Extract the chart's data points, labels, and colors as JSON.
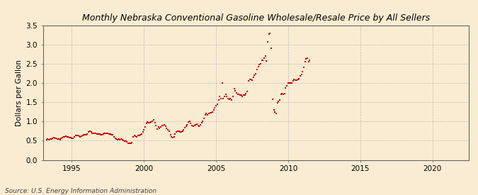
{
  "title": "Monthly Nebraska Conventional Gasoline Wholesale/Resale Price by All Sellers",
  "ylabel": "Dollars per Gallon",
  "source": "Source: U.S. Energy Information Administration",
  "background_color": "#faecd2",
  "point_color": "#cc0000",
  "xlim": [
    1993.0,
    2022.5
  ],
  "ylim": [
    0.0,
    3.5
  ],
  "xticks": [
    1995,
    2000,
    2005,
    2010,
    2015,
    2020
  ],
  "yticks": [
    0.0,
    0.5,
    1.0,
    1.5,
    2.0,
    2.5,
    3.0,
    3.5
  ],
  "data": [
    [
      1993.25,
      0.52
    ],
    [
      1993.33,
      0.55
    ],
    [
      1993.42,
      0.53
    ],
    [
      1993.5,
      0.54
    ],
    [
      1993.58,
      0.55
    ],
    [
      1993.67,
      0.56
    ],
    [
      1993.75,
      0.58
    ],
    [
      1993.83,
      0.57
    ],
    [
      1993.92,
      0.56
    ],
    [
      1994.0,
      0.55
    ],
    [
      1994.08,
      0.54
    ],
    [
      1994.17,
      0.53
    ],
    [
      1994.25,
      0.56
    ],
    [
      1994.33,
      0.59
    ],
    [
      1994.42,
      0.6
    ],
    [
      1994.5,
      0.6
    ],
    [
      1994.58,
      0.61
    ],
    [
      1994.67,
      0.6
    ],
    [
      1994.75,
      0.6
    ],
    [
      1994.83,
      0.59
    ],
    [
      1994.92,
      0.58
    ],
    [
      1995.0,
      0.57
    ],
    [
      1995.08,
      0.56
    ],
    [
      1995.17,
      0.6
    ],
    [
      1995.25,
      0.63
    ],
    [
      1995.33,
      0.63
    ],
    [
      1995.42,
      0.64
    ],
    [
      1995.5,
      0.62
    ],
    [
      1995.58,
      0.6
    ],
    [
      1995.67,
      0.62
    ],
    [
      1995.75,
      0.64
    ],
    [
      1995.83,
      0.66
    ],
    [
      1995.92,
      0.66
    ],
    [
      1996.0,
      0.65
    ],
    [
      1996.08,
      0.67
    ],
    [
      1996.17,
      0.72
    ],
    [
      1996.25,
      0.75
    ],
    [
      1996.33,
      0.72
    ],
    [
      1996.42,
      0.7
    ],
    [
      1996.5,
      0.69
    ],
    [
      1996.58,
      0.7
    ],
    [
      1996.67,
      0.7
    ],
    [
      1996.75,
      0.68
    ],
    [
      1996.83,
      0.68
    ],
    [
      1996.92,
      0.67
    ],
    [
      1997.0,
      0.66
    ],
    [
      1997.08,
      0.65
    ],
    [
      1997.17,
      0.67
    ],
    [
      1997.25,
      0.7
    ],
    [
      1997.33,
      0.7
    ],
    [
      1997.42,
      0.7
    ],
    [
      1997.5,
      0.69
    ],
    [
      1997.58,
      0.68
    ],
    [
      1997.67,
      0.67
    ],
    [
      1997.75,
      0.66
    ],
    [
      1997.83,
      0.65
    ],
    [
      1997.92,
      0.6
    ],
    [
      1998.0,
      0.56
    ],
    [
      1998.08,
      0.54
    ],
    [
      1998.17,
      0.53
    ],
    [
      1998.25,
      0.54
    ],
    [
      1998.33,
      0.52
    ],
    [
      1998.42,
      0.54
    ],
    [
      1998.5,
      0.52
    ],
    [
      1998.58,
      0.5
    ],
    [
      1998.67,
      0.49
    ],
    [
      1998.75,
      0.48
    ],
    [
      1998.83,
      0.47
    ],
    [
      1998.92,
      0.44
    ],
    [
      1999.0,
      0.43
    ],
    [
      1999.08,
      0.43
    ],
    [
      1999.17,
      0.46
    ],
    [
      1999.25,
      0.6
    ],
    [
      1999.33,
      0.64
    ],
    [
      1999.42,
      0.62
    ],
    [
      1999.5,
      0.6
    ],
    [
      1999.58,
      0.63
    ],
    [
      1999.67,
      0.64
    ],
    [
      1999.75,
      0.66
    ],
    [
      1999.83,
      0.68
    ],
    [
      1999.92,
      0.72
    ],
    [
      2000.0,
      0.78
    ],
    [
      2000.08,
      0.85
    ],
    [
      2000.17,
      0.95
    ],
    [
      2000.25,
      0.98
    ],
    [
      2000.33,
      0.96
    ],
    [
      2000.42,
      0.97
    ],
    [
      2000.5,
      0.98
    ],
    [
      2000.58,
      1.0
    ],
    [
      2000.67,
      1.05
    ],
    [
      2000.75,
      0.97
    ],
    [
      2000.83,
      0.9
    ],
    [
      2000.92,
      0.8
    ],
    [
      2001.0,
      0.85
    ],
    [
      2001.08,
      0.82
    ],
    [
      2001.17,
      0.86
    ],
    [
      2001.25,
      0.9
    ],
    [
      2001.33,
      0.9
    ],
    [
      2001.42,
      0.92
    ],
    [
      2001.5,
      0.87
    ],
    [
      2001.58,
      0.82
    ],
    [
      2001.67,
      0.78
    ],
    [
      2001.75,
      0.75
    ],
    [
      2001.83,
      0.65
    ],
    [
      2001.92,
      0.6
    ],
    [
      2002.0,
      0.58
    ],
    [
      2002.08,
      0.6
    ],
    [
      2002.17,
      0.68
    ],
    [
      2002.25,
      0.72
    ],
    [
      2002.33,
      0.74
    ],
    [
      2002.42,
      0.74
    ],
    [
      2002.5,
      0.73
    ],
    [
      2002.58,
      0.73
    ],
    [
      2002.67,
      0.74
    ],
    [
      2002.75,
      0.78
    ],
    [
      2002.83,
      0.84
    ],
    [
      2002.92,
      0.88
    ],
    [
      2003.0,
      0.92
    ],
    [
      2003.08,
      0.98
    ],
    [
      2003.17,
      1.0
    ],
    [
      2003.25,
      0.95
    ],
    [
      2003.33,
      0.9
    ],
    [
      2003.42,
      0.88
    ],
    [
      2003.5,
      0.9
    ],
    [
      2003.58,
      0.92
    ],
    [
      2003.67,
      0.93
    ],
    [
      2003.75,
      0.9
    ],
    [
      2003.83,
      0.88
    ],
    [
      2003.92,
      0.92
    ],
    [
      2004.0,
      0.96
    ],
    [
      2004.08,
      1.0
    ],
    [
      2004.17,
      1.08
    ],
    [
      2004.25,
      1.18
    ],
    [
      2004.33,
      1.2
    ],
    [
      2004.42,
      1.18
    ],
    [
      2004.5,
      1.2
    ],
    [
      2004.58,
      1.22
    ],
    [
      2004.67,
      1.22
    ],
    [
      2004.75,
      1.25
    ],
    [
      2004.83,
      1.3
    ],
    [
      2004.92,
      1.35
    ],
    [
      2005.0,
      1.42
    ],
    [
      2005.08,
      1.45
    ],
    [
      2005.17,
      1.55
    ],
    [
      2005.25,
      1.65
    ],
    [
      2005.33,
      1.6
    ],
    [
      2005.42,
      2.0
    ],
    [
      2005.5,
      1.6
    ],
    [
      2005.58,
      1.65
    ],
    [
      2005.67,
      1.7
    ],
    [
      2005.75,
      1.65
    ],
    [
      2005.83,
      1.6
    ],
    [
      2005.92,
      1.58
    ],
    [
      2006.0,
      1.6
    ],
    [
      2006.08,
      1.55
    ],
    [
      2006.17,
      1.65
    ],
    [
      2006.25,
      1.85
    ],
    [
      2006.33,
      1.8
    ],
    [
      2006.42,
      1.75
    ],
    [
      2006.5,
      1.7
    ],
    [
      2006.58,
      1.7
    ],
    [
      2006.67,
      1.68
    ],
    [
      2006.75,
      1.68
    ],
    [
      2006.83,
      1.65
    ],
    [
      2006.92,
      1.68
    ],
    [
      2007.0,
      1.68
    ],
    [
      2007.08,
      1.72
    ],
    [
      2007.17,
      1.78
    ],
    [
      2007.25,
      2.05
    ],
    [
      2007.33,
      2.1
    ],
    [
      2007.42,
      2.1
    ],
    [
      2007.5,
      2.08
    ],
    [
      2007.58,
      2.15
    ],
    [
      2007.67,
      2.2
    ],
    [
      2007.75,
      2.25
    ],
    [
      2007.83,
      2.35
    ],
    [
      2007.92,
      2.42
    ],
    [
      2008.0,
      2.48
    ],
    [
      2008.08,
      2.5
    ],
    [
      2008.17,
      2.6
    ],
    [
      2008.25,
      2.6
    ],
    [
      2008.33,
      2.65
    ],
    [
      2008.42,
      2.7
    ],
    [
      2008.5,
      2.58
    ],
    [
      2008.58,
      3.08
    ],
    [
      2008.67,
      3.28
    ],
    [
      2008.75,
      3.3
    ],
    [
      2008.83,
      2.9
    ],
    [
      2008.92,
      1.58
    ],
    [
      2009.0,
      1.3
    ],
    [
      2009.08,
      1.25
    ],
    [
      2009.17,
      1.2
    ],
    [
      2009.25,
      1.48
    ],
    [
      2009.33,
      1.52
    ],
    [
      2009.42,
      1.55
    ],
    [
      2009.5,
      1.7
    ],
    [
      2009.58,
      1.72
    ],
    [
      2009.67,
      1.7
    ],
    [
      2009.75,
      1.72
    ],
    [
      2009.83,
      1.88
    ],
    [
      2009.92,
      1.92
    ],
    [
      2010.0,
      2.0
    ],
    [
      2010.08,
      2.0
    ],
    [
      2010.17,
      2.0
    ],
    [
      2010.25,
      2.0
    ],
    [
      2010.33,
      2.05
    ],
    [
      2010.42,
      2.1
    ],
    [
      2010.5,
      2.08
    ],
    [
      2010.58,
      2.08
    ],
    [
      2010.67,
      2.1
    ],
    [
      2010.75,
      2.12
    ],
    [
      2010.83,
      2.18
    ],
    [
      2010.92,
      2.22
    ],
    [
      2011.0,
      2.3
    ],
    [
      2011.08,
      2.4
    ],
    [
      2011.17,
      2.55
    ],
    [
      2011.25,
      2.62
    ],
    [
      2011.33,
      2.65
    ],
    [
      2011.42,
      2.55
    ],
    [
      2011.5,
      2.6
    ]
  ]
}
